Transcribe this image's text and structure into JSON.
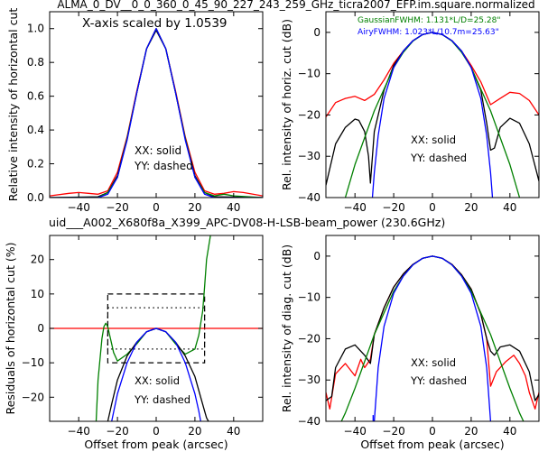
{
  "figure": {
    "title": "ALMA_0_DV__0_0_360_0_45_90_227_243_259_GHz_ticra2007_EFP.im.square.normalized",
    "subtitle": "uid___A002_X680f8a_X399_APC-DV08-H-LSB-beam_power (230.6GHz)",
    "subtitle_color": "#ff0000"
  },
  "chart_data": [
    {
      "id": "top-left",
      "type": "line",
      "ylabel": "Relative intensity of horizontal cut",
      "xlabel": "",
      "xlim": [
        -55,
        55
      ],
      "ylim": [
        0,
        1.1
      ],
      "xticks": [
        -40,
        -20,
        0,
        20,
        40
      ],
      "yticks": [
        0.0,
        0.2,
        0.4,
        0.6,
        0.8,
        1.0
      ],
      "tick_labels_x": [
        "−40",
        "−20",
        "0",
        "20",
        "40"
      ],
      "tick_labels_y": [
        "0.0",
        "0.2",
        "0.4",
        "0.6",
        "0.8",
        "1.0"
      ],
      "annotations": [
        "X-axis scaled by 1.0539",
        "XX: solid",
        "YY: dashed"
      ],
      "series": [
        {
          "color": "#ff0000",
          "x": [
            -55,
            -45,
            -40,
            -35,
            -30,
            -25,
            -20,
            -15,
            -10,
            -5,
            0,
            5,
            10,
            15,
            20,
            25,
            30,
            35,
            40,
            45,
            55
          ],
          "y": [
            0.01,
            0.025,
            0.03,
            0.025,
            0.02,
            0.04,
            0.15,
            0.36,
            0.63,
            0.88,
            1.0,
            0.88,
            0.63,
            0.36,
            0.15,
            0.04,
            0.02,
            0.025,
            0.035,
            0.03,
            0.01
          ]
        },
        {
          "color": "#000000",
          "x": [
            -55,
            -30,
            -25,
            -20,
            -15,
            -10,
            -5,
            0,
            5,
            10,
            15,
            20,
            25,
            30,
            55
          ],
          "y": [
            0.0,
            0.005,
            0.03,
            0.13,
            0.35,
            0.62,
            0.88,
            0.99,
            0.88,
            0.62,
            0.35,
            0.13,
            0.03,
            0.005,
            0.0
          ]
        },
        {
          "color": "#008000",
          "x": [
            -55,
            -30,
            -25,
            -20,
            -15,
            -10,
            -5,
            0,
            5,
            10,
            15,
            20,
            25,
            30,
            35,
            40,
            55
          ],
          "y": [
            0.0,
            0.0,
            0.03,
            0.12,
            0.35,
            0.62,
            0.88,
            1.0,
            0.88,
            0.62,
            0.35,
            0.12,
            0.03,
            0.01,
            0.02,
            0.01,
            0.0
          ]
        },
        {
          "color": "#0000ff",
          "x": [
            -55,
            -30,
            -25,
            -20,
            -15,
            -10,
            -5,
            0,
            5,
            10,
            15,
            20,
            25,
            30,
            55
          ],
          "y": [
            0.0,
            0.0,
            0.02,
            0.12,
            0.34,
            0.62,
            0.88,
            1.0,
            0.88,
            0.62,
            0.34,
            0.12,
            0.02,
            0.0,
            0.0
          ]
        }
      ]
    },
    {
      "id": "top-right",
      "type": "line",
      "ylabel": "Rel. intensity of horiz. cut (dB)",
      "xlabel": "",
      "xlim": [
        -55,
        55
      ],
      "ylim": [
        -40,
        5
      ],
      "xticks": [
        -40,
        -20,
        0,
        20,
        40
      ],
      "yticks": [
        0,
        -10,
        -20,
        -30,
        -40
      ],
      "tick_labels_x": [
        "−40",
        "−20",
        "0",
        "20",
        "40"
      ],
      "tick_labels_y": [
        "0",
        "−10",
        "−20",
        "−30",
        "−40"
      ],
      "legend": [
        {
          "text": "GaussianFWHM: 1.131*L/D=25.28\"",
          "color": "#008000"
        },
        {
          "text": "AiryFWHM: 1.023*L/10.7m=25.63\"",
          "color": "#0000ff"
        }
      ],
      "annotations": [
        "XX: solid",
        "YY: dashed"
      ],
      "series": [
        {
          "color": "#ff0000",
          "x": [
            -55,
            -50,
            -45,
            -40,
            -35,
            -30,
            -25,
            -20,
            -15,
            -10,
            -5,
            0,
            5,
            10,
            15,
            20,
            25,
            30,
            35,
            40,
            45,
            50,
            55
          ],
          "y": [
            -20.5,
            -17,
            -16,
            -15.5,
            -16.5,
            -15,
            -11.5,
            -7.5,
            -4.5,
            -2.0,
            -0.5,
            0,
            -0.5,
            -2.0,
            -4.5,
            -8,
            -12,
            -17.5,
            -16,
            -14.5,
            -14.8,
            -16.5,
            -20
          ]
        },
        {
          "color": "#000000",
          "x": [
            -55,
            -50,
            -45,
            -40,
            -38,
            -35,
            -33,
            -32,
            -30,
            -25,
            -20,
            -15,
            -10,
            -5,
            0,
            5,
            10,
            15,
            20,
            25,
            28,
            30,
            32,
            35,
            40,
            45,
            50,
            55
          ],
          "y": [
            -37,
            -27,
            -23,
            -21,
            -21.3,
            -24,
            -30,
            -36.5,
            -24,
            -14,
            -8,
            -4.5,
            -2.0,
            -0.5,
            0,
            -0.5,
            -2.0,
            -4.5,
            -8.5,
            -14,
            -22,
            -28.5,
            -28,
            -23,
            -20.8,
            -22,
            -27,
            -36
          ]
        },
        {
          "color": "#008000",
          "x": [
            -55,
            -45,
            -40,
            -30,
            -20,
            -15,
            -10,
            -5,
            0,
            5,
            10,
            15,
            20,
            30,
            40,
            45,
            55
          ],
          "y": [
            -48,
            -40,
            -32,
            -19,
            -8.5,
            -4.8,
            -2.1,
            -0.5,
            0,
            -0.5,
            -2.1,
            -4.8,
            -8.5,
            -19,
            -32,
            -40,
            -48
          ]
        },
        {
          "color": "#0000ff",
          "x": [
            -31,
            -30,
            -28,
            -25,
            -20,
            -15,
            -10,
            -5,
            0,
            5,
            10,
            15,
            20,
            25,
            28,
            30,
            31
          ],
          "y": [
            -40,
            -34,
            -25,
            -16,
            -8.5,
            -4.5,
            -2.0,
            -0.5,
            0,
            -0.5,
            -2.0,
            -4.5,
            -8.5,
            -16,
            -25,
            -34,
            -40
          ]
        }
      ]
    },
    {
      "id": "bottom-left",
      "type": "line",
      "ylabel": "Residuals of horizontal cut (%)",
      "xlabel": "Offset from peak (arcsec)",
      "xlim": [
        -55,
        55
      ],
      "ylim": [
        -27,
        27
      ],
      "xticks": [
        -40,
        -20,
        0,
        20,
        40
      ],
      "yticks": [
        -20,
        -10,
        0,
        10,
        20
      ],
      "tick_labels_x": [
        "−40",
        "−20",
        "0",
        "20",
        "40"
      ],
      "tick_labels_y": [
        "−20",
        "−10",
        "0",
        "10",
        "20"
      ],
      "annotations": [
        "XX: solid",
        "YY: dashed"
      ],
      "boxes": [
        {
          "style": "dashed",
          "x": [
            -25,
            25
          ],
          "y": [
            -10,
            10
          ]
        },
        {
          "style": "dotted",
          "x": [
            -25,
            25
          ],
          "y": [
            -6,
            6
          ]
        }
      ],
      "series": [
        {
          "color": "#ff0000",
          "x": [
            -55,
            55
          ],
          "y": [
            0,
            0
          ]
        },
        {
          "color": "#008000",
          "x": [
            -31,
            -30,
            -28,
            -27,
            -26,
            -25,
            -24,
            -23,
            -22,
            -20,
            -15,
            -10,
            -5,
            0,
            5,
            10,
            15,
            20,
            22,
            24,
            25,
            26,
            28
          ],
          "y": [
            -27,
            -15,
            -3,
            0.5,
            1.5,
            0.5,
            -2,
            -4.5,
            -7,
            -9.5,
            -7.5,
            -4.5,
            -1,
            0,
            -1,
            -4.5,
            -7.5,
            -6,
            -2,
            5,
            12,
            20,
            27
          ]
        },
        {
          "color": "#000000",
          "x": [
            -25,
            -23,
            -20,
            -15,
            -10,
            -5,
            0,
            5,
            10,
            15,
            20,
            23,
            25,
            26,
            27
          ],
          "y": [
            -27,
            -22,
            -15,
            -8,
            -4,
            -1,
            0,
            -1,
            -4,
            -8,
            -14,
            -20,
            -24,
            -26,
            -27
          ]
        },
        {
          "color": "#0000ff",
          "x": [
            -23,
            -20,
            -15,
            -10,
            -5,
            0,
            5,
            10,
            15,
            20,
            22,
            23
          ],
          "y": [
            -27,
            -19,
            -10,
            -4,
            -1,
            0,
            -1,
            -4,
            -10,
            -19,
            -24,
            -27
          ]
        }
      ]
    },
    {
      "id": "bottom-right",
      "type": "line",
      "ylabel": "Rel. intensity of diag. cut (dB)",
      "xlabel": "Offset from peak (arcsec)",
      "xlim": [
        -55,
        55
      ],
      "ylim": [
        -40,
        5
      ],
      "xticks": [
        -40,
        -20,
        0,
        20,
        40
      ],
      "yticks": [
        0,
        -10,
        -20,
        -30,
        -40
      ],
      "tick_labels_x": [
        "−40",
        "−20",
        "0",
        "20",
        "40"
      ],
      "tick_labels_y": [
        "0",
        "−10",
        "−20",
        "−30",
        "−40"
      ],
      "annotations": [
        "XX: solid",
        "YY: dashed"
      ],
      "series": [
        {
          "color": "#ff0000",
          "x": [
            -55,
            -53,
            -50,
            -45,
            -40,
            -37,
            -35,
            -32,
            -30,
            -25,
            -20,
            -15,
            -10,
            -5,
            0,
            5,
            10,
            15,
            20,
            25,
            28,
            30,
            33,
            38,
            42,
            45,
            48,
            50,
            53,
            55
          ],
          "y": [
            -33,
            -37,
            -28.5,
            -26,
            -29,
            -25,
            -27,
            -25,
            -19,
            -12.5,
            -7.5,
            -4.3,
            -2.0,
            -0.5,
            0,
            -0.5,
            -2.0,
            -4.5,
            -8,
            -14,
            -20,
            -31.5,
            -28,
            -25.5,
            -24,
            -26,
            -29,
            -33,
            -37,
            -33
          ]
        },
        {
          "color": "#000000",
          "x": [
            -55,
            -52,
            -50,
            -45,
            -40,
            -35,
            -32,
            -30,
            -25,
            -20,
            -15,
            -10,
            -5,
            0,
            5,
            10,
            15,
            20,
            25,
            28,
            30,
            32,
            35,
            40,
            45,
            50,
            53,
            55
          ],
          "y": [
            -35,
            -34,
            -27,
            -22.5,
            -21.5,
            -24,
            -26,
            -19,
            -12.5,
            -7.5,
            -4.3,
            -2.0,
            -0.5,
            0,
            -0.5,
            -2.0,
            -4.5,
            -8,
            -14,
            -20,
            -23,
            -24,
            -22,
            -21.5,
            -23,
            -28,
            -35,
            -33.5
          ]
        },
        {
          "color": "#008000",
          "x": [
            -55,
            -45,
            -40,
            -30,
            -20,
            -15,
            -10,
            -5,
            0,
            5,
            10,
            15,
            20,
            30,
            40,
            45,
            55
          ],
          "y": [
            -48,
            -38,
            -32,
            -19,
            -8.5,
            -4.8,
            -2.1,
            -0.5,
            0,
            -0.5,
            -2.1,
            -4.8,
            -8.5,
            -19,
            -32,
            -38,
            -48
          ]
        },
        {
          "color": "#0000ff",
          "x": [
            -30,
            -28,
            -25,
            -20,
            -15,
            -10,
            -5,
            0,
            5,
            10,
            15,
            20,
            25,
            28,
            30
          ],
          "y": [
            -40,
            -27,
            -17,
            -9,
            -4.8,
            -2.1,
            -0.5,
            0,
            -0.5,
            -2.1,
            -4.8,
            -9,
            -17,
            -27,
            -40
          ]
        },
        {
          "color": "#0000ff",
          "x": [
            -30.6,
            -30.6
          ],
          "y": [
            -38.5,
            -40
          ]
        }
      ]
    }
  ]
}
